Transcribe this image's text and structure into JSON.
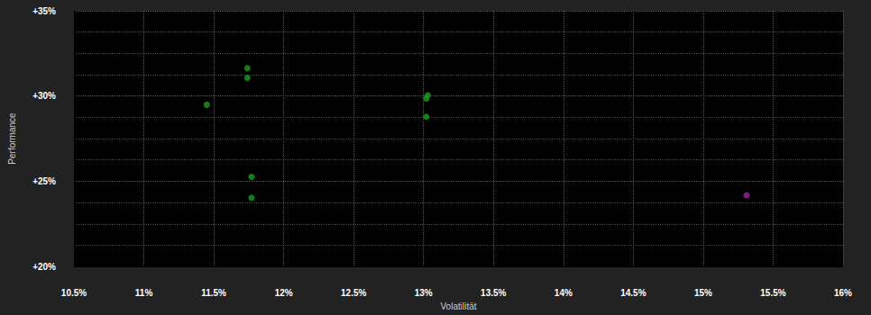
{
  "chart_data": {
    "type": "scatter",
    "x_label": "Volatilität",
    "y_label": "Performance",
    "x": [
      11.74,
      11.74,
      11.45,
      13.03,
      13.02,
      13.02,
      11.77,
      11.77,
      15.31
    ],
    "values": [
      31.63,
      31.07,
      29.49,
      30.05,
      29.85,
      28.78,
      25.26,
      24.03,
      24.18
    ],
    "colors": [
      "#1a9e1a",
      "#1a9e1a",
      "#1a9e1a",
      "#1a9e1a",
      "#1a9e1a",
      "#1a9e1a",
      "#1a9e1a",
      "#1a9e1a",
      "#a020a0"
    ],
    "xlim": [
      10.5,
      16
    ],
    "xticks": [
      {
        "value": 10.5,
        "label": "10.5%"
      },
      {
        "value": 11,
        "label": "11%"
      },
      {
        "value": 11.5,
        "label": "11.5%"
      },
      {
        "value": 12,
        "label": "12%"
      },
      {
        "value": 12.5,
        "label": "12.5%"
      },
      {
        "value": 13,
        "label": "13%"
      },
      {
        "value": 13.5,
        "label": "13.5%"
      },
      {
        "value": 14,
        "label": "14%"
      },
      {
        "value": 14.5,
        "label": "14.5%"
      },
      {
        "value": 15,
        "label": "15%"
      },
      {
        "value": 15.5,
        "label": "15.5%"
      },
      {
        "value": 16,
        "label": "16%"
      }
    ],
    "ylim": [
      20,
      35
    ],
    "yticks": [
      {
        "value": 20,
        "label": "+20%"
      },
      {
        "value": 25,
        "label": "+25%"
      },
      {
        "value": 30,
        "label": "+30%"
      },
      {
        "value": 35,
        "label": "+35%"
      }
    ],
    "grid": true
  }
}
